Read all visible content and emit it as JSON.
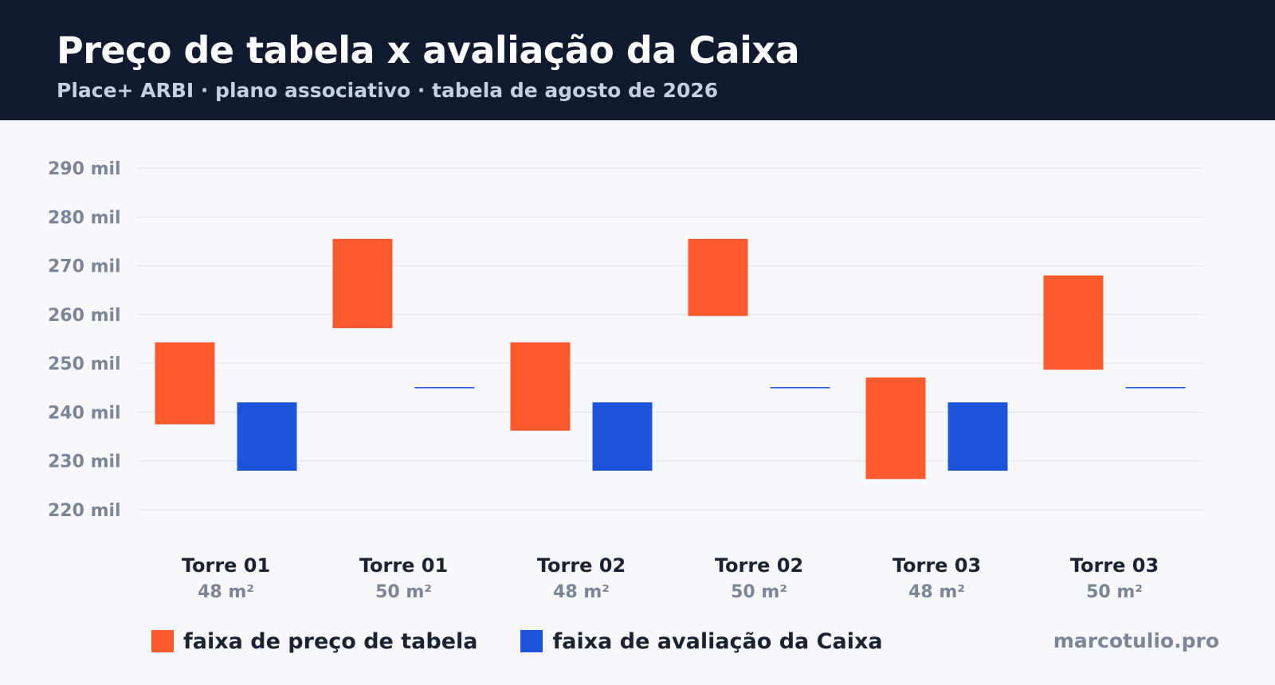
{
  "header": {
    "title": "Preço de tabela x avaliação da Caixa",
    "subtitle": "Place+ ARBI · plano associativo · tabela de agosto de 2026"
  },
  "footer": {
    "brand": "marcotulio.pro"
  },
  "colors": {
    "price": "#ff5a2e",
    "appraisal": "#1c55dc",
    "header_bg": "#111a2e",
    "grid": "#dde1ea",
    "tick_text": "#7c8597"
  },
  "chart_data": {
    "type": "bar",
    "title": "Preço de tabela x avaliação da Caixa",
    "subtitle": "Place+ ARBI · plano associativo · tabela de agosto de 2026",
    "ylim": [
      220000,
      290000
    ],
    "y_ticks": [
      {
        "value": 290000,
        "label": "290 mil"
      },
      {
        "value": 280000,
        "label": "280 mil"
      },
      {
        "value": 270000,
        "label": "270 mil"
      },
      {
        "value": 260000,
        "label": "260 mil"
      },
      {
        "value": 250000,
        "label": "250 mil"
      },
      {
        "value": 240000,
        "label": "240 mil"
      },
      {
        "value": 230000,
        "label": "230 mil"
      },
      {
        "value": 220000,
        "label": "220 mil"
      }
    ],
    "grid": true,
    "legend_position": "bottom-left",
    "categories": [
      {
        "name": "Torre 01",
        "area": "48 m²"
      },
      {
        "name": "Torre 01",
        "area": "50 m²"
      },
      {
        "name": "Torre 02",
        "area": "48 m²"
      },
      {
        "name": "Torre 02",
        "area": "50 m²"
      },
      {
        "name": "Torre 03",
        "area": "48 m²"
      },
      {
        "name": "Torre 03",
        "area": "50 m²"
      }
    ],
    "series": [
      {
        "name": "faixa de preço de tabela",
        "color": "#ff5a2e",
        "ranges": [
          [
            237500,
            254300
          ],
          [
            257200,
            275500
          ],
          [
            236200,
            254300
          ],
          [
            259700,
            275500
          ],
          [
            226300,
            247100
          ],
          [
            248700,
            268000
          ]
        ]
      },
      {
        "name": "faixa de avaliação da Caixa",
        "color": "#1c55dc",
        "ranges": [
          [
            228000,
            242000
          ],
          [
            245000,
            245000
          ],
          [
            228000,
            242000
          ],
          [
            245000,
            245000
          ],
          [
            228000,
            242000
          ],
          [
            245000,
            245000
          ]
        ]
      }
    ]
  }
}
